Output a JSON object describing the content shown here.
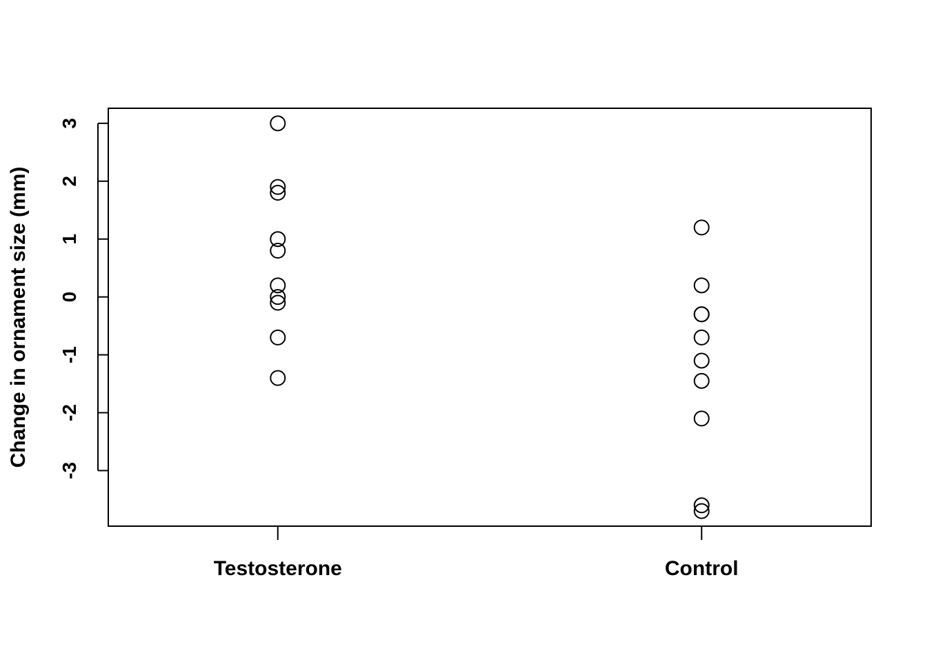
{
  "chart_data": {
    "type": "scatter",
    "title": "",
    "xlabel": "",
    "ylabel": "Change in ornament size (mm)",
    "categories": [
      "Testosterone",
      "Control"
    ],
    "series": [
      {
        "values": [
          [
            3.0,
            1.9,
            1.8,
            1.0,
            0.8,
            0.2,
            0.0,
            -0.1,
            -0.7,
            -1.4
          ],
          [
            1.2,
            0.2,
            -0.3,
            -0.3,
            -0.7,
            -1.1,
            -1.45,
            -2.1,
            -3.6,
            -3.7
          ]
        ]
      }
    ],
    "yticks": [
      -3,
      -2,
      -1,
      0,
      1,
      2,
      3
    ],
    "ylim": [
      -3.96,
      3.26
    ],
    "grid": false,
    "legend": "none",
    "marker": "open-circle",
    "colors": {
      "points": "#000000",
      "axes": "#000000",
      "background": "#ffffff"
    }
  }
}
